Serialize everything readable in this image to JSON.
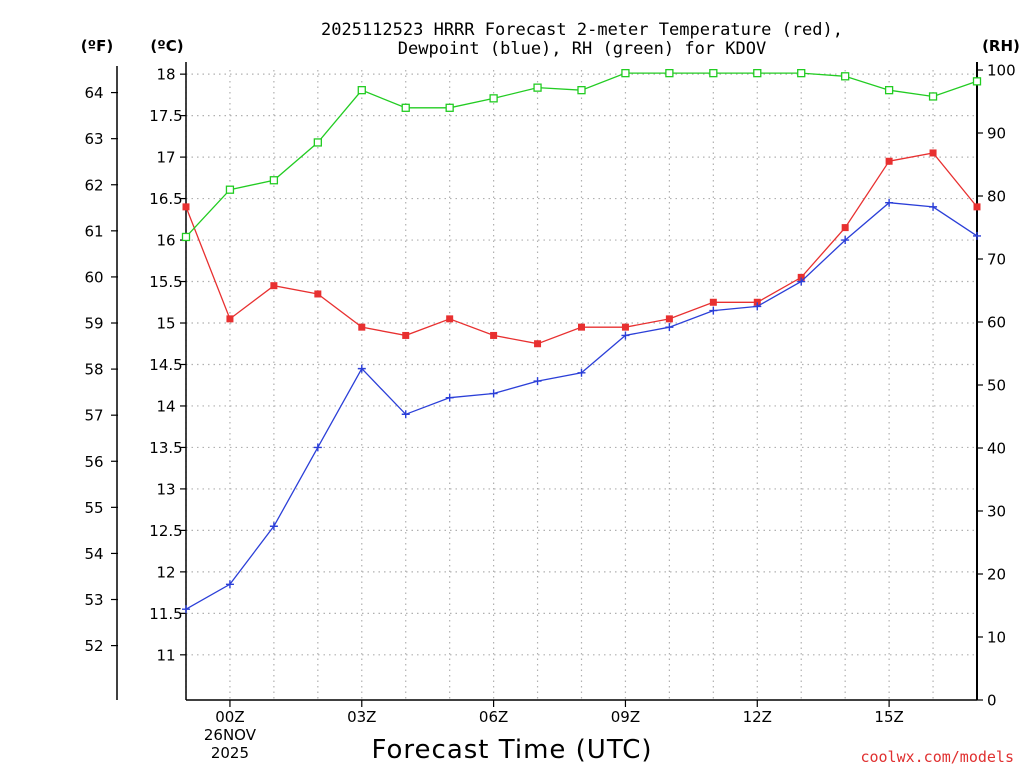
{
  "colors": {
    "temperature": "#e83030",
    "dewpoint": "#2b3fd8",
    "rh": "#22cc22",
    "credit": "#e03030",
    "grid": "#b0b0b0"
  },
  "credit": "coolwx.com/models",
  "chart_data": {
    "type": "line",
    "title": [
      "2025112523 HRRR Forecast 2-meter Temperature (red),",
      "Dewpoint (blue), RH (green) for KDOV"
    ],
    "xlabel": "Forecast Time (UTC)",
    "units": {
      "fahrenheit": "(ºF)",
      "celsius": "(ºC)",
      "rh": "(RH)"
    },
    "x_hours": [
      -1,
      0,
      1,
      2,
      3,
      4,
      5,
      6,
      7,
      8,
      9,
      10,
      11,
      12,
      13,
      14,
      15,
      16,
      17
    ],
    "xlim": [
      -1,
      17
    ],
    "x_ticks": [
      {
        "hour": 0,
        "lines": [
          "00Z",
          "26NOV",
          "2025"
        ]
      },
      {
        "hour": 3,
        "lines": [
          "03Z"
        ]
      },
      {
        "hour": 6,
        "lines": [
          "06Z"
        ]
      },
      {
        "hour": 9,
        "lines": [
          "09Z"
        ]
      },
      {
        "hour": 12,
        "lines": [
          "12Z"
        ]
      },
      {
        "hour": 15,
        "lines": [
          "15Z"
        ]
      }
    ],
    "celsius_axis": {
      "ylim": [
        10.6,
        18.05
      ],
      "ticks": [
        11,
        11.5,
        12,
        12.5,
        13,
        13.5,
        14,
        14.5,
        15,
        15.5,
        16,
        16.5,
        17,
        17.5,
        18
      ],
      "tick_labels": [
        "11",
        "11.5",
        "12",
        "12.5",
        "13",
        "13.5",
        "14",
        "14.5",
        "15",
        "15.5",
        "16",
        "16.5",
        "17",
        "17.5",
        "18"
      ]
    },
    "fahrenheit_axis": {
      "ticks": [
        52,
        53,
        54,
        55,
        56,
        57,
        58,
        59,
        60,
        61,
        62,
        63,
        64
      ],
      "tick_labels": [
        "52",
        "53",
        "54",
        "55",
        "56",
        "57",
        "58",
        "59",
        "60",
        "61",
        "62",
        "63",
        "64"
      ]
    },
    "rh_axis": {
      "ylim": [
        0,
        100
      ],
      "ticks": [
        0,
        10,
        20,
        30,
        40,
        50,
        60,
        70,
        80,
        90,
        100
      ],
      "tick_labels": [
        "0",
        "10",
        "20",
        "30",
        "40",
        "50",
        "60",
        "70",
        "80",
        "90",
        "100"
      ]
    },
    "series": [
      {
        "name": "2-meter Temperature",
        "color_key": "temperature",
        "axis": "celsius",
        "marker": "filled-square",
        "values": [
          16.4,
          15.05,
          15.45,
          15.35,
          14.95,
          14.85,
          15.05,
          14.85,
          14.75,
          14.95,
          14.95,
          15.05,
          15.25,
          15.25,
          15.55,
          16.15,
          16.95,
          17.05,
          16.4
        ]
      },
      {
        "name": "Dewpoint",
        "color_key": "dewpoint",
        "axis": "celsius",
        "marker": "plus",
        "values": [
          11.55,
          11.85,
          12.55,
          13.5,
          14.45,
          13.9,
          14.1,
          14.15,
          14.3,
          14.4,
          14.85,
          14.95,
          15.15,
          15.2,
          15.5,
          16.0,
          16.45,
          16.4,
          16.05
        ]
      },
      {
        "name": "RH",
        "color_key": "rh",
        "axis": "rh",
        "marker": "open-square",
        "values": [
          73.5,
          81.0,
          82.5,
          88.5,
          96.8,
          94.0,
          94.0,
          95.5,
          97.2,
          96.8,
          99.5,
          99.5,
          99.5,
          99.5,
          99.5,
          99.0,
          96.8,
          95.8,
          98.2
        ]
      }
    ]
  }
}
